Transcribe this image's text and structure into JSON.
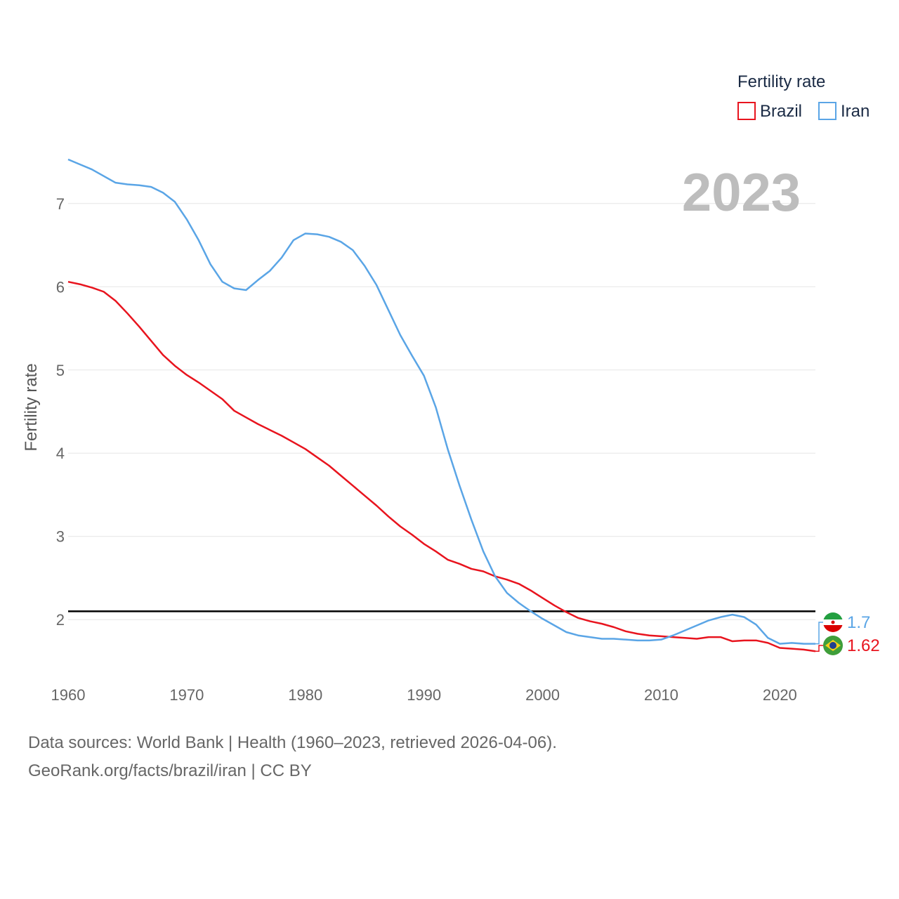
{
  "chart_data": {
    "type": "line",
    "year_label": "2023",
    "ylabel": "Fertility rate",
    "legend": {
      "title": "Fertility rate",
      "placement": "top-right"
    },
    "xlim": [
      1960,
      2023
    ],
    "ylim": [
      1.2,
      7.8
    ],
    "x_ticks": [
      1960,
      1970,
      1980,
      1990,
      2000,
      2010,
      2020
    ],
    "y_ticks": [
      2,
      3,
      4,
      5,
      6,
      7
    ],
    "reference_line": {
      "value": 2.1,
      "color": "#000000"
    },
    "x": [
      1960,
      1961,
      1962,
      1963,
      1964,
      1965,
      1966,
      1967,
      1968,
      1969,
      1970,
      1971,
      1972,
      1973,
      1974,
      1975,
      1976,
      1977,
      1978,
      1979,
      1980,
      1981,
      1982,
      1983,
      1984,
      1985,
      1986,
      1987,
      1988,
      1989,
      1990,
      1991,
      1992,
      1993,
      1994,
      1995,
      1996,
      1997,
      1998,
      1999,
      2000,
      2001,
      2002,
      2003,
      2004,
      2005,
      2006,
      2007,
      2008,
      2009,
      2010,
      2011,
      2012,
      2013,
      2014,
      2015,
      2016,
      2017,
      2018,
      2019,
      2020,
      2021,
      2022,
      2023
    ],
    "series": [
      {
        "name": "Brazil",
        "color": "#e8141e",
        "end_label": "1.62",
        "flag": "brazil",
        "values": [
          6.06,
          6.03,
          5.99,
          5.94,
          5.83,
          5.68,
          5.52,
          5.35,
          5.18,
          5.05,
          4.94,
          4.85,
          4.75,
          4.65,
          4.51,
          4.43,
          4.35,
          4.28,
          4.21,
          4.13,
          4.05,
          3.95,
          3.85,
          3.73,
          3.61,
          3.49,
          3.37,
          3.24,
          3.12,
          3.02,
          2.91,
          2.82,
          2.72,
          2.67,
          2.61,
          2.58,
          2.52,
          2.48,
          2.43,
          2.35,
          2.26,
          2.17,
          2.09,
          2.02,
          1.98,
          1.95,
          1.91,
          1.86,
          1.83,
          1.81,
          1.8,
          1.79,
          1.78,
          1.77,
          1.79,
          1.79,
          1.74,
          1.75,
          1.75,
          1.72,
          1.66,
          1.65,
          1.64,
          1.62
        ]
      },
      {
        "name": "Iran",
        "color": "#5aa5e6",
        "end_label": "1.7",
        "flag": "iran",
        "values": [
          7.53,
          7.47,
          7.41,
          7.33,
          7.25,
          7.23,
          7.22,
          7.2,
          7.13,
          7.02,
          6.81,
          6.56,
          6.27,
          6.06,
          5.98,
          5.96,
          6.08,
          6.19,
          6.35,
          6.56,
          6.64,
          6.63,
          6.6,
          6.54,
          6.44,
          6.25,
          6.02,
          5.72,
          5.42,
          5.17,
          4.93,
          4.55,
          4.05,
          3.61,
          3.2,
          2.82,
          2.52,
          2.32,
          2.2,
          2.1,
          2.01,
          1.93,
          1.85,
          1.81,
          1.79,
          1.77,
          1.77,
          1.76,
          1.75,
          1.75,
          1.76,
          1.81,
          1.87,
          1.93,
          1.99,
          2.03,
          2.06,
          2.03,
          1.94,
          1.78,
          1.71,
          1.72,
          1.71,
          1.71
        ]
      }
    ]
  },
  "footer": {
    "source": "Data sources: World Bank | Health (1960–2023, retrieved 2026-04-06).",
    "credit": "GeoRank.org/facts/brazil/iran | CC BY"
  }
}
